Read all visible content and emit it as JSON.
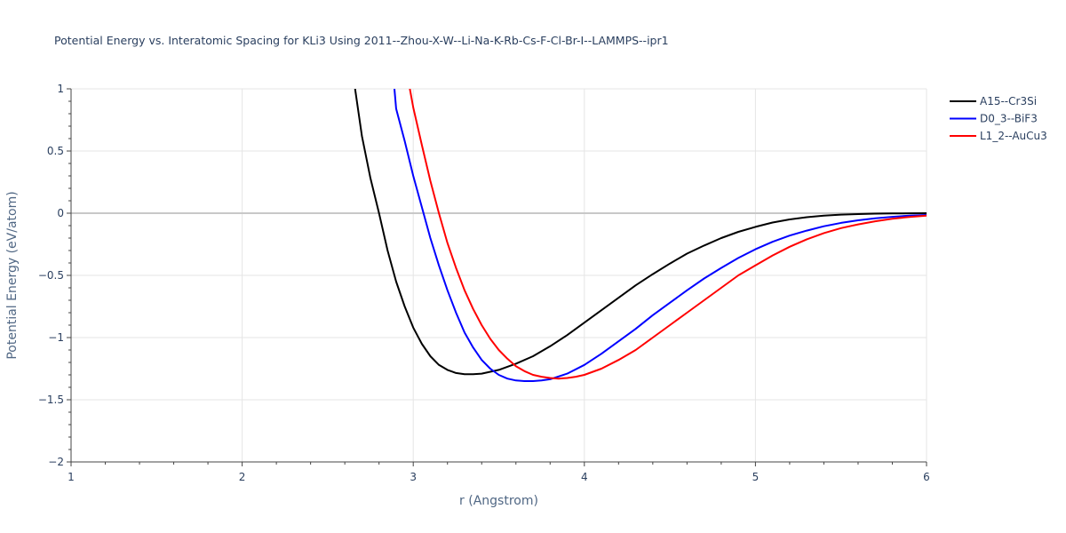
{
  "chart_data": {
    "type": "line",
    "title": "Potential Energy vs. Interatomic Spacing for KLi3 Using 2011--Zhou-X-W--Li-Na-K-Rb-Cs-F-Cl-Br-I--LAMMPS--ipr1",
    "xlabel": "r (Angstrom)",
    "ylabel": "Potential Energy (eV/atom)",
    "xlim": [
      1,
      6
    ],
    "ylim": [
      -2,
      1
    ],
    "x_ticks": [
      1,
      2,
      3,
      4,
      5,
      6
    ],
    "x_tick_labels": [
      "1",
      "2",
      "3",
      "4",
      "5",
      "6"
    ],
    "y_ticks": [
      -2,
      -1.5,
      -1,
      -0.5,
      0,
      0.5,
      1
    ],
    "y_tick_labels": [
      "−2",
      "−1.5",
      "−1",
      "−0.5",
      "0",
      "0.5",
      "1"
    ],
    "grid": true,
    "legend_position": "top-right",
    "series": [
      {
        "name": "A15--Cr3Si",
        "color": "#000000",
        "x": [
          2.66,
          2.7,
          2.75,
          2.8,
          2.85,
          2.9,
          2.95,
          3.0,
          3.05,
          3.1,
          3.15,
          3.2,
          3.25,
          3.3,
          3.35,
          3.4,
          3.45,
          3.5,
          3.6,
          3.7,
          3.8,
          3.9,
          4.0,
          4.1,
          4.2,
          4.3,
          4.4,
          4.5,
          4.6,
          4.7,
          4.8,
          4.9,
          5.0,
          5.1,
          5.2,
          5.3,
          5.4,
          5.5,
          5.6,
          5.7,
          5.8,
          5.9,
          6.0
        ],
        "y": [
          1.0,
          0.62,
          0.28,
          0.0,
          -0.3,
          -0.55,
          -0.75,
          -0.92,
          -1.05,
          -1.15,
          -1.22,
          -1.26,
          -1.285,
          -1.295,
          -1.295,
          -1.29,
          -1.275,
          -1.26,
          -1.21,
          -1.15,
          -1.07,
          -0.98,
          -0.88,
          -0.78,
          -0.68,
          -0.58,
          -0.49,
          -0.405,
          -0.325,
          -0.26,
          -0.2,
          -0.15,
          -0.11,
          -0.075,
          -0.05,
          -0.032,
          -0.02,
          -0.012,
          -0.007,
          -0.004,
          -0.002,
          -0.001,
          0.0
        ]
      },
      {
        "name": "D0_3--BiF3",
        "color": "#0000ff",
        "x": [
          2.89,
          2.9,
          2.95,
          3.0,
          3.05,
          3.1,
          3.15,
          3.2,
          3.25,
          3.3,
          3.35,
          3.4,
          3.45,
          3.5,
          3.55,
          3.6,
          3.65,
          3.7,
          3.75,
          3.8,
          3.9,
          4.0,
          4.1,
          4.2,
          4.3,
          4.4,
          4.5,
          4.6,
          4.7,
          4.8,
          4.9,
          5.0,
          5.1,
          5.2,
          5.3,
          5.4,
          5.5,
          5.6,
          5.7,
          5.8,
          5.9,
          6.0
        ],
        "y": [
          1.0,
          0.84,
          0.58,
          0.3,
          0.05,
          -0.2,
          -0.42,
          -0.62,
          -0.8,
          -0.96,
          -1.08,
          -1.18,
          -1.25,
          -1.3,
          -1.33,
          -1.345,
          -1.35,
          -1.35,
          -1.345,
          -1.335,
          -1.29,
          -1.22,
          -1.13,
          -1.03,
          -0.93,
          -0.82,
          -0.72,
          -0.62,
          -0.525,
          -0.44,
          -0.36,
          -0.29,
          -0.23,
          -0.18,
          -0.14,
          -0.105,
          -0.078,
          -0.057,
          -0.041,
          -0.029,
          -0.02,
          -0.014
        ]
      },
      {
        "name": "L1_2--AuCu3",
        "color": "#ff0000",
        "x": [
          2.98,
          3.0,
          3.05,
          3.1,
          3.15,
          3.2,
          3.25,
          3.3,
          3.35,
          3.4,
          3.45,
          3.5,
          3.55,
          3.6,
          3.65,
          3.7,
          3.75,
          3.8,
          3.85,
          3.9,
          3.95,
          4.0,
          4.1,
          4.2,
          4.3,
          4.4,
          4.5,
          4.6,
          4.7,
          4.8,
          4.9,
          5.0,
          5.1,
          5.2,
          5.3,
          5.4,
          5.5,
          5.6,
          5.7,
          5.8,
          5.9,
          6.0
        ],
        "y": [
          1.0,
          0.85,
          0.55,
          0.26,
          0.0,
          -0.24,
          -0.44,
          -0.62,
          -0.77,
          -0.9,
          -1.01,
          -1.1,
          -1.17,
          -1.23,
          -1.27,
          -1.3,
          -1.315,
          -1.325,
          -1.33,
          -1.325,
          -1.315,
          -1.3,
          -1.25,
          -1.18,
          -1.1,
          -1.0,
          -0.9,
          -0.8,
          -0.7,
          -0.6,
          -0.5,
          -0.42,
          -0.34,
          -0.27,
          -0.21,
          -0.16,
          -0.12,
          -0.09,
          -0.065,
          -0.045,
          -0.03,
          -0.02
        ]
      }
    ]
  }
}
